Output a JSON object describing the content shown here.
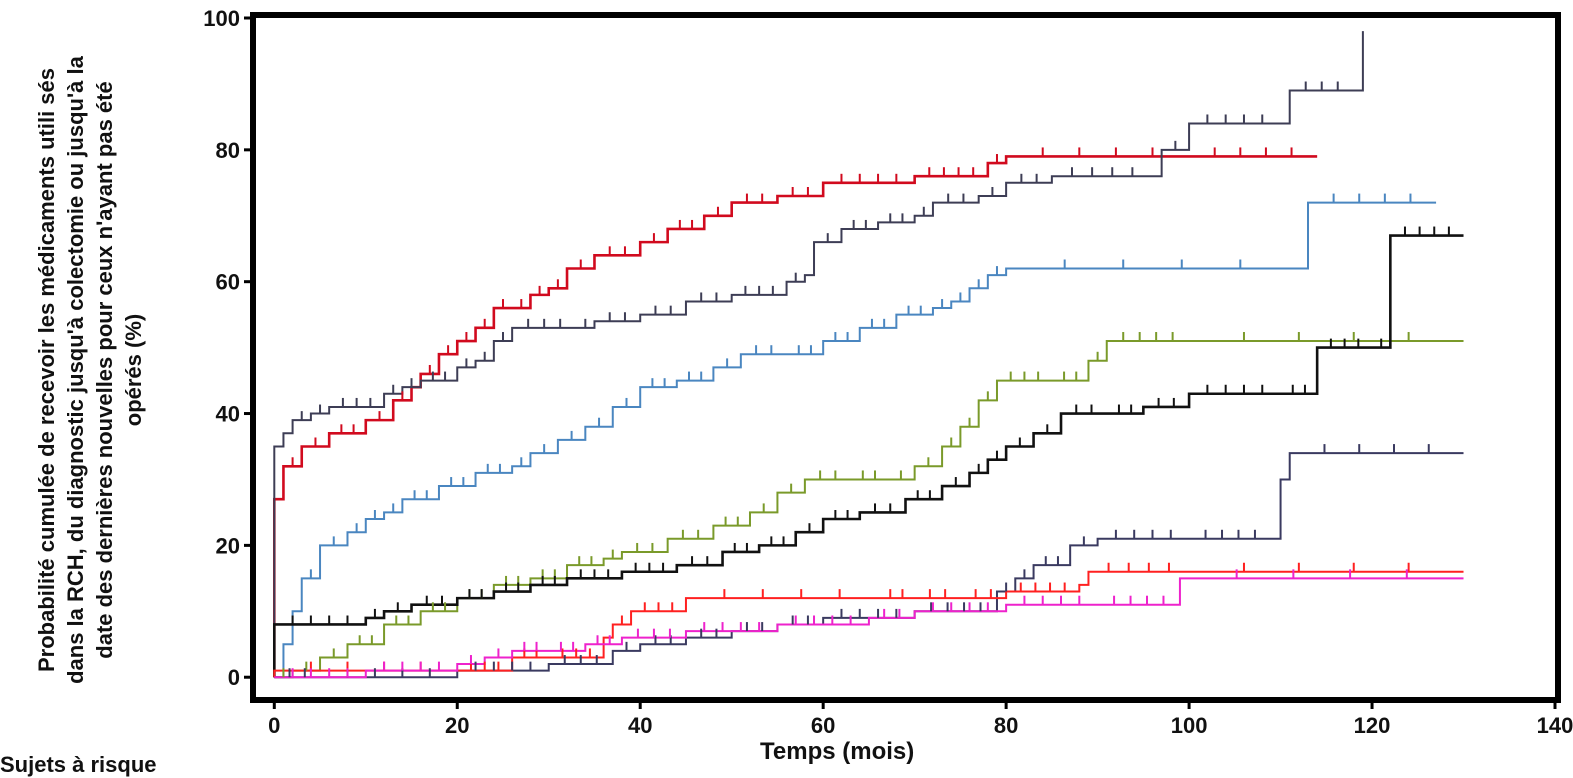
{
  "chart_data": {
    "type": "line",
    "step": true,
    "ylabel": "Probabilité cumulée de recevoir les médicaments utili sés dans la RCH, du diagnostic jusqu'à colectomie ou jusqu'à la date des dernières nouvelles pour ceux n'ayant pas été opérés (%)",
    "xlabel": "Temps (mois)",
    "footer": "Sujets à risque",
    "xlim": [
      -2,
      140
    ],
    "ylim": [
      -3,
      100
    ],
    "x_ticks": [
      0,
      20,
      40,
      60,
      80,
      100,
      120,
      140
    ],
    "y_ticks": [
      0,
      20,
      40,
      60,
      80,
      100
    ],
    "grid": false,
    "series": [
      {
        "color": "#d10a1e",
        "points": [
          [
            0,
            0
          ],
          [
            0,
            27
          ],
          [
            1,
            32
          ],
          [
            3,
            35
          ],
          [
            6,
            37
          ],
          [
            10,
            39
          ],
          [
            13,
            42
          ],
          [
            15,
            44
          ],
          [
            16,
            46
          ],
          [
            18,
            49
          ],
          [
            20,
            51
          ],
          [
            22,
            53
          ],
          [
            24,
            56
          ],
          [
            26,
            56
          ],
          [
            28,
            58
          ],
          [
            30,
            59
          ],
          [
            32,
            62
          ],
          [
            35,
            64
          ],
          [
            40,
            66
          ],
          [
            43,
            68
          ],
          [
            47,
            70
          ],
          [
            50,
            72
          ],
          [
            55,
            73
          ],
          [
            60,
            75
          ],
          [
            70,
            76
          ],
          [
            78,
            78
          ],
          [
            80,
            79
          ],
          [
            100,
            79
          ],
          [
            114,
            79
          ]
        ]
      },
      {
        "color": "#3d3d55",
        "points": [
          [
            0,
            0
          ],
          [
            0,
            35
          ],
          [
            1,
            37
          ],
          [
            2,
            39
          ],
          [
            4,
            40
          ],
          [
            6,
            41
          ],
          [
            12,
            43
          ],
          [
            14,
            44
          ],
          [
            16,
            45
          ],
          [
            20,
            47
          ],
          [
            22,
            48
          ],
          [
            24,
            51
          ],
          [
            26,
            53
          ],
          [
            33,
            53
          ],
          [
            35,
            54
          ],
          [
            40,
            55
          ],
          [
            45,
            57
          ],
          [
            50,
            58
          ],
          [
            56,
            60
          ],
          [
            58,
            61
          ],
          [
            59,
            66
          ],
          [
            62,
            68
          ],
          [
            66,
            69
          ],
          [
            70,
            70
          ],
          [
            72,
            72
          ],
          [
            77,
            73
          ],
          [
            80,
            75
          ],
          [
            85,
            76
          ],
          [
            96,
            76
          ],
          [
            97,
            80
          ],
          [
            100,
            84
          ],
          [
            110,
            84
          ],
          [
            111,
            89
          ],
          [
            118,
            89
          ],
          [
            119,
            98
          ]
        ]
      },
      {
        "color": "#4a86c0",
        "points": [
          [
            0,
            0
          ],
          [
            1,
            5
          ],
          [
            2,
            10
          ],
          [
            3,
            15
          ],
          [
            5,
            20
          ],
          [
            8,
            22
          ],
          [
            10,
            24
          ],
          [
            12,
            25
          ],
          [
            14,
            27
          ],
          [
            18,
            29
          ],
          [
            22,
            31
          ],
          [
            26,
            32
          ],
          [
            28,
            34
          ],
          [
            31,
            36
          ],
          [
            34,
            38
          ],
          [
            37,
            41
          ],
          [
            40,
            44
          ],
          [
            44,
            45
          ],
          [
            48,
            47
          ],
          [
            51,
            49
          ],
          [
            56,
            49
          ],
          [
            60,
            51
          ],
          [
            64,
            53
          ],
          [
            68,
            55
          ],
          [
            72,
            56
          ],
          [
            74,
            57
          ],
          [
            76,
            59
          ],
          [
            78,
            61
          ],
          [
            80,
            62
          ],
          [
            112,
            62
          ],
          [
            113,
            72
          ],
          [
            127,
            72
          ]
        ]
      },
      {
        "color": "#7a9a2a",
        "points": [
          [
            0,
            0
          ],
          [
            2,
            1
          ],
          [
            5,
            3
          ],
          [
            8,
            5
          ],
          [
            12,
            8
          ],
          [
            16,
            10
          ],
          [
            20,
            12
          ],
          [
            24,
            14
          ],
          [
            28,
            15
          ],
          [
            32,
            17
          ],
          [
            36,
            18
          ],
          [
            38,
            19
          ],
          [
            43,
            21
          ],
          [
            48,
            23
          ],
          [
            52,
            25
          ],
          [
            55,
            28
          ],
          [
            58,
            30
          ],
          [
            63,
            30
          ],
          [
            67,
            30
          ],
          [
            70,
            32
          ],
          [
            73,
            35
          ],
          [
            75,
            38
          ],
          [
            77,
            42
          ],
          [
            79,
            45
          ],
          [
            85,
            45
          ],
          [
            89,
            48
          ],
          [
            91,
            51
          ],
          [
            100,
            51
          ],
          [
            130,
            51
          ]
        ]
      },
      {
        "color": "#111111",
        "points": [
          [
            0,
            0
          ],
          [
            0,
            8
          ],
          [
            10,
            9
          ],
          [
            12,
            10
          ],
          [
            15,
            11
          ],
          [
            20,
            12
          ],
          [
            24,
            13
          ],
          [
            28,
            14
          ],
          [
            32,
            15
          ],
          [
            38,
            16
          ],
          [
            44,
            17
          ],
          [
            49,
            19
          ],
          [
            53,
            20
          ],
          [
            57,
            22
          ],
          [
            60,
            24
          ],
          [
            64,
            25
          ],
          [
            69,
            27
          ],
          [
            73,
            29
          ],
          [
            76,
            31
          ],
          [
            78,
            33
          ],
          [
            80,
            35
          ],
          [
            83,
            37
          ],
          [
            86,
            40
          ],
          [
            91,
            40
          ],
          [
            95,
            41
          ],
          [
            100,
            43
          ],
          [
            110,
            43
          ],
          [
            114,
            50
          ],
          [
            120,
            50
          ],
          [
            122,
            67
          ],
          [
            130,
            67
          ]
        ]
      },
      {
        "color": "#3a3a60",
        "points": [
          [
            0,
            0
          ],
          [
            5,
            0
          ],
          [
            20,
            1
          ],
          [
            30,
            2
          ],
          [
            37,
            4
          ],
          [
            40,
            5
          ],
          [
            45,
            6
          ],
          [
            50,
            7
          ],
          [
            55,
            8
          ],
          [
            60,
            9
          ],
          [
            70,
            10
          ],
          [
            79,
            13
          ],
          [
            81,
            15
          ],
          [
            83,
            17
          ],
          [
            87,
            20
          ],
          [
            90,
            21
          ],
          [
            100,
            21
          ],
          [
            109,
            21
          ],
          [
            110,
            30
          ],
          [
            111,
            34
          ],
          [
            130,
            34
          ]
        ]
      },
      {
        "color": "#ff2020",
        "points": [
          [
            0,
            0
          ],
          [
            0,
            1
          ],
          [
            20,
            1
          ],
          [
            26,
            3
          ],
          [
            30,
            3
          ],
          [
            36,
            6
          ],
          [
            37,
            8
          ],
          [
            39,
            10
          ],
          [
            45,
            12
          ],
          [
            66,
            12
          ],
          [
            70,
            12
          ],
          [
            75,
            12
          ],
          [
            80,
            13
          ],
          [
            88,
            14
          ],
          [
            89,
            16
          ],
          [
            100,
            16
          ],
          [
            130,
            16
          ]
        ]
      },
      {
        "color": "#ee22cc",
        "points": [
          [
            0,
            0
          ],
          [
            10,
            1
          ],
          [
            20,
            2
          ],
          [
            23,
            3
          ],
          [
            26,
            4
          ],
          [
            30,
            4
          ],
          [
            34,
            5
          ],
          [
            38,
            6
          ],
          [
            45,
            7
          ],
          [
            55,
            8
          ],
          [
            65,
            9
          ],
          [
            70,
            10
          ],
          [
            80,
            11
          ],
          [
            90,
            11
          ],
          [
            99,
            15
          ],
          [
            130,
            15
          ]
        ]
      }
    ]
  }
}
